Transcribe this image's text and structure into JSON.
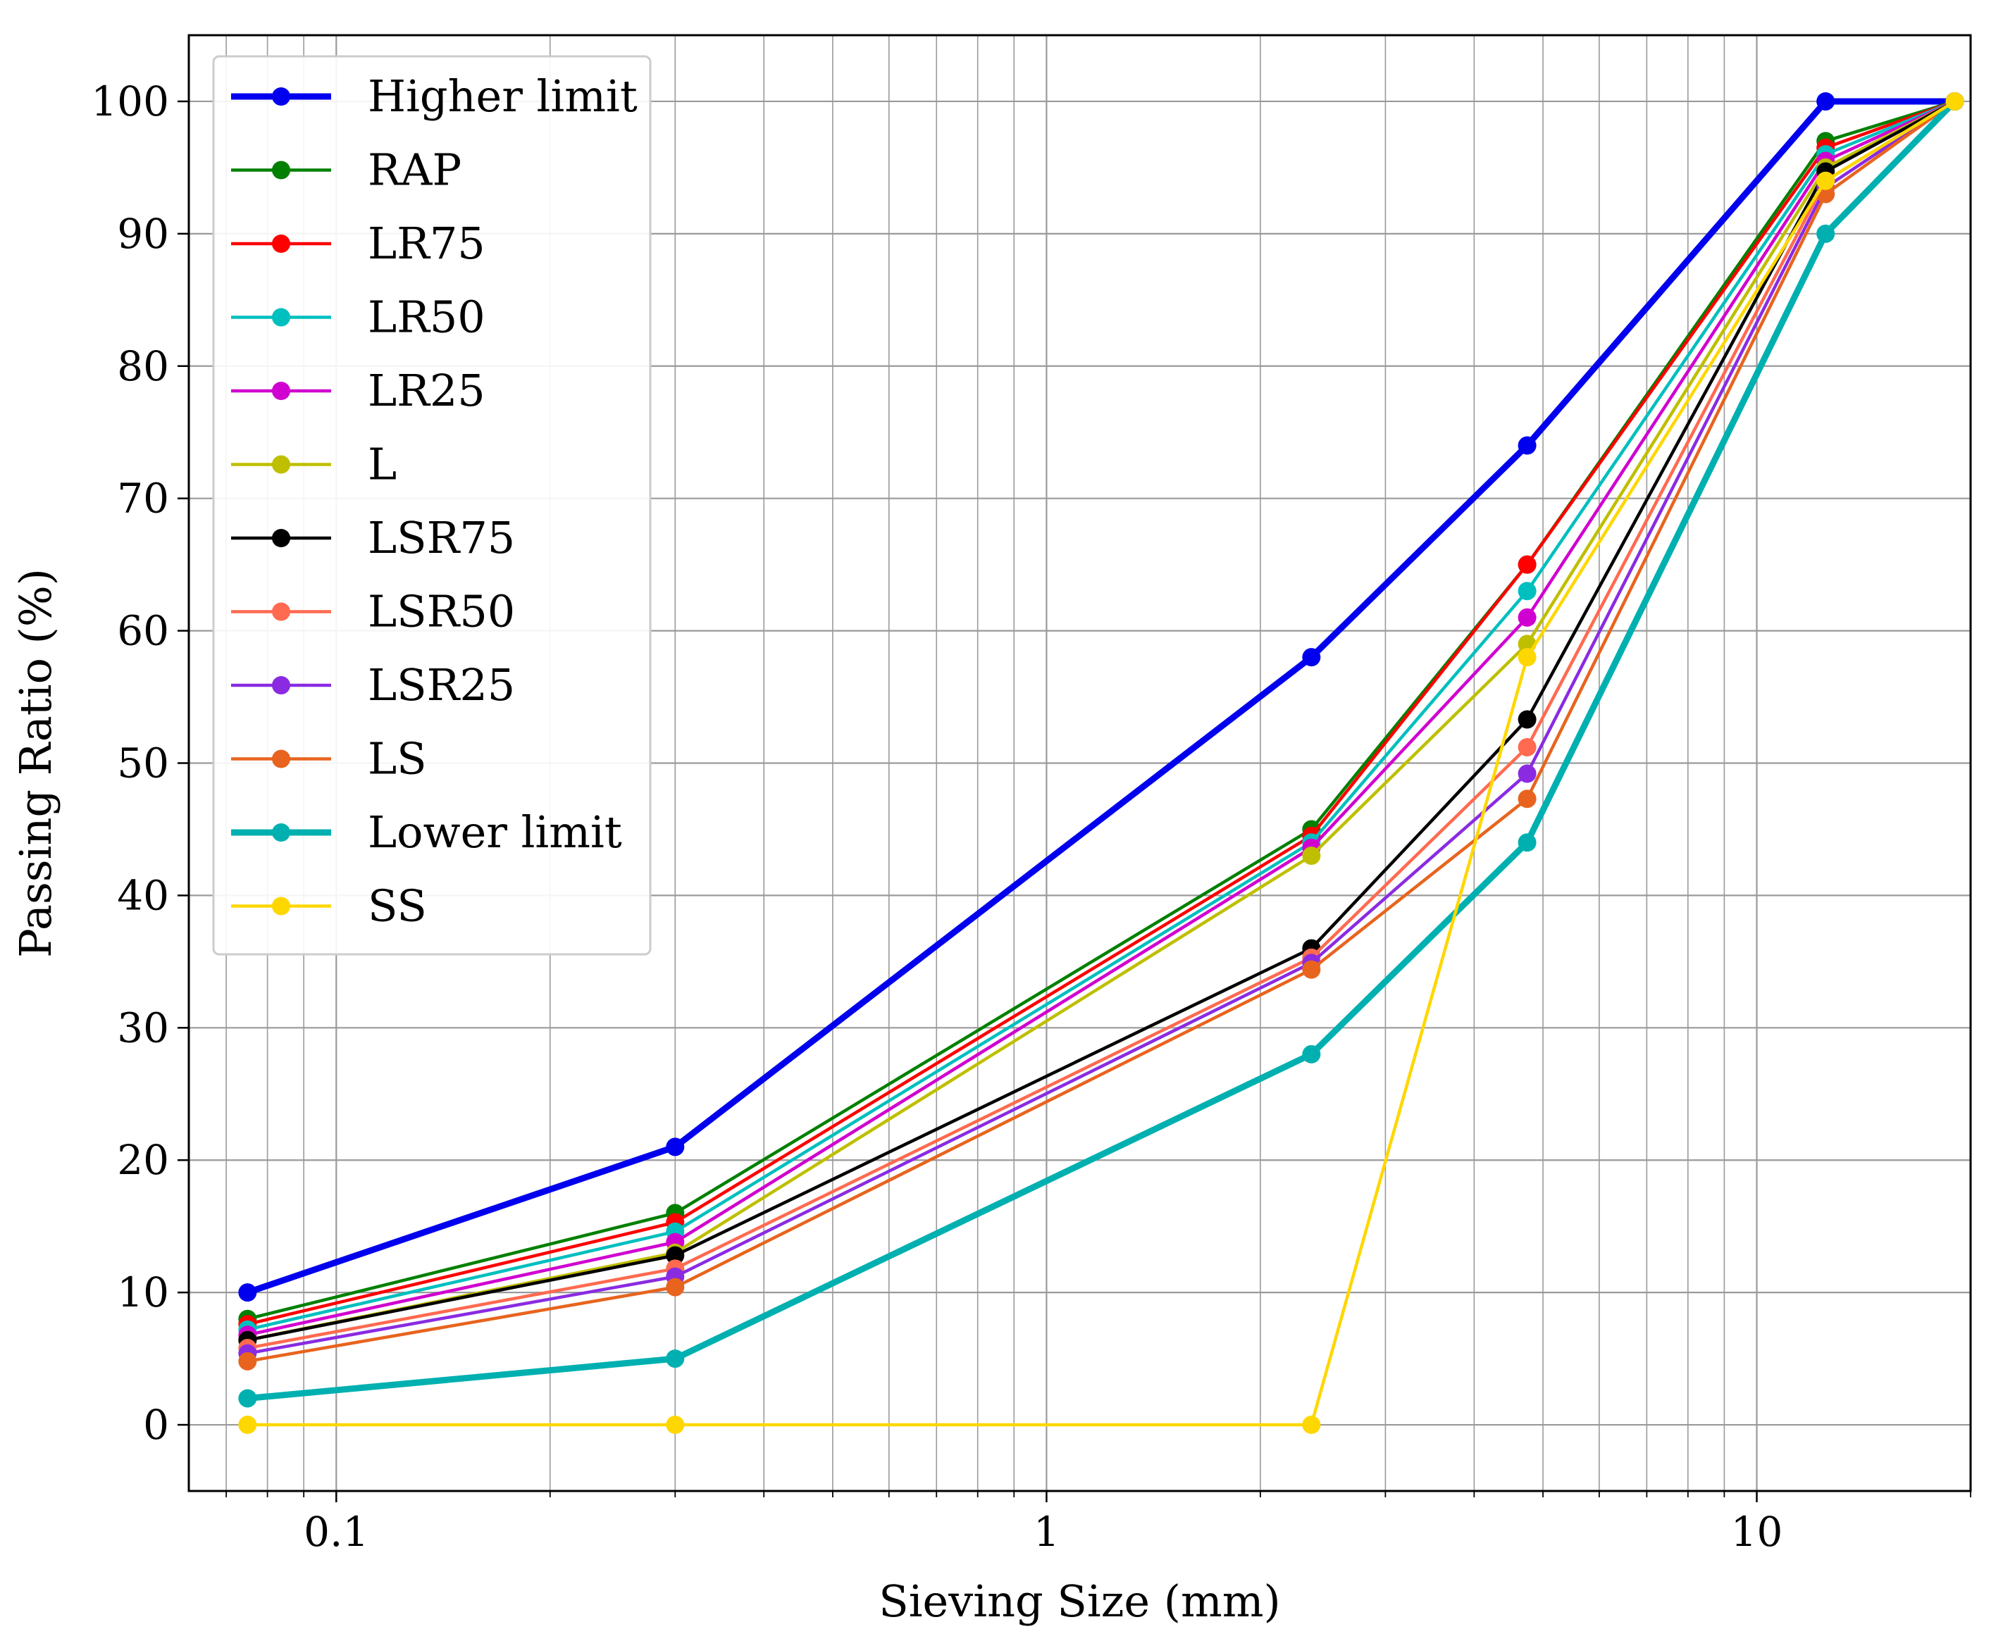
{
  "chart_data": {
    "type": "line",
    "xscale": "log",
    "xlabel": "Sieving Size (mm)",
    "ylabel": "Passing Ratio (%)",
    "xlim": [
      0.062,
      20
    ],
    "ylim": [
      -5,
      105
    ],
    "x": [
      0.075,
      0.3,
      2.36,
      4.75,
      12.5,
      19
    ],
    "xticks": [
      {
        "value": 0.1,
        "label": "0.1"
      },
      {
        "value": 1,
        "label": "1"
      },
      {
        "value": 10,
        "label": "10"
      }
    ],
    "yticks": [
      {
        "value": 0,
        "label": "0"
      },
      {
        "value": 10,
        "label": "10"
      },
      {
        "value": 20,
        "label": "20"
      },
      {
        "value": 30,
        "label": "30"
      },
      {
        "value": 40,
        "label": "40"
      },
      {
        "value": 50,
        "label": "50"
      },
      {
        "value": 60,
        "label": "60"
      },
      {
        "value": 70,
        "label": "70"
      },
      {
        "value": 80,
        "label": "80"
      },
      {
        "value": 90,
        "label": "90"
      },
      {
        "value": 100,
        "label": "100"
      }
    ],
    "grid": true,
    "legend_position": "top-left",
    "series": [
      {
        "name": "Higher limit",
        "color": "#0000ee",
        "thick": true,
        "values": [
          10,
          21,
          58,
          74,
          100,
          100
        ]
      },
      {
        "name": "RAP",
        "color": "#008000",
        "thick": false,
        "values": [
          8,
          16,
          45,
          65,
          97,
          100
        ]
      },
      {
        "name": "LR75",
        "color": "#ff0000",
        "thick": false,
        "values": [
          7.6,
          15.3,
          44.5,
          65,
          96.5,
          100
        ]
      },
      {
        "name": "LR50",
        "color": "#00bfbf",
        "thick": false,
        "values": [
          7.2,
          14.6,
          44,
          63,
          96,
          100
        ]
      },
      {
        "name": "LR25",
        "color": "#d000d0",
        "thick": false,
        "values": [
          6.8,
          13.8,
          43.6,
          61,
          95.5,
          100
        ]
      },
      {
        "name": "L",
        "color": "#bfbf00",
        "thick": false,
        "values": [
          6.4,
          13,
          43,
          59,
          95,
          100
        ]
      },
      {
        "name": "LSR75",
        "color": "#000000",
        "thick": false,
        "values": [
          6.4,
          12.8,
          36,
          53.3,
          94.7,
          100
        ]
      },
      {
        "name": "LSR50",
        "color": "#ff6a50",
        "thick": false,
        "values": [
          5.8,
          11.8,
          35.3,
          51.2,
          94,
          100
        ]
      },
      {
        "name": "LSR25",
        "color": "#8a2be2",
        "thick": false,
        "values": [
          5.4,
          11.2,
          34.9,
          49.2,
          93.5,
          100
        ]
      },
      {
        "name": "LS",
        "color": "#e8641e",
        "thick": false,
        "values": [
          4.8,
          10.4,
          34.4,
          47.3,
          93,
          100
        ]
      },
      {
        "name": "Lower limit",
        "color": "#00b0b0",
        "thick": true,
        "values": [
          2,
          5,
          28,
          44,
          90,
          100
        ]
      },
      {
        "name": "SS",
        "color": "#ffd700",
        "thick": false,
        "values": [
          0,
          0,
          0,
          58,
          94,
          100
        ]
      }
    ]
  }
}
